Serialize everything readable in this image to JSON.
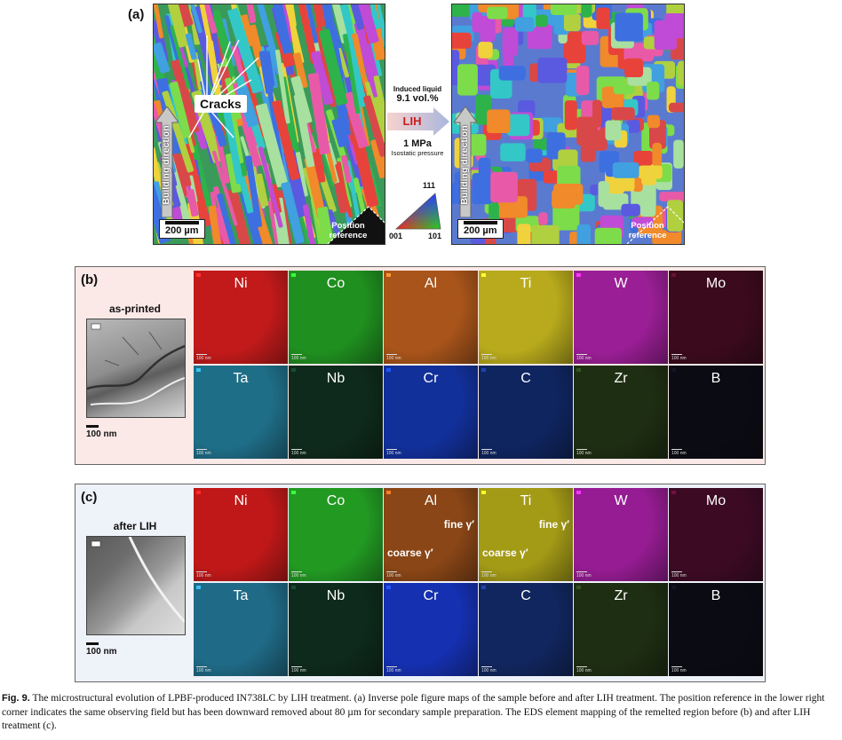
{
  "panel_a": {
    "label": "(a)",
    "cracks_label": "Cracks",
    "building_direction": "Building direction",
    "scale_bar": "200 µm",
    "position_reference": "Position reference",
    "induced_liquid_label": "Induced liquid",
    "induced_liquid_value": "9.1 vol.%",
    "arrow_label": "LIH",
    "pressure_value": "1 MPa",
    "pressure_label": "Isostatic pressure",
    "legend_111": "111",
    "legend_001": "001",
    "legend_101": "101"
  },
  "panel_b": {
    "label": "(b)",
    "tem_title": "as-printed",
    "tem_scale": "100 nm",
    "tile_scale": "100 nm",
    "elements": [
      "Ni",
      "Co",
      "Al",
      "Ti",
      "W",
      "Mo",
      "Ta",
      "Nb",
      "Cr",
      "C",
      "Zr",
      "B"
    ],
    "colors": [
      "#c21a1a",
      "#1f8f1f",
      "#a8541a",
      "#b8aa1c",
      "#9a1e95",
      "#3b0a1c",
      "#1f6e88",
      "#0e2a1c",
      "#12309a",
      "#0f2560",
      "#1e2e12",
      "#0b0b14"
    ]
  },
  "panel_c": {
    "label": "(c)",
    "tem_title": "after LIH",
    "tem_scale": "100 nm",
    "tile_scale": "100 nm",
    "elements": [
      "Ni",
      "Co",
      "Al",
      "Ti",
      "W",
      "Mo",
      "Ta",
      "Nb",
      "Cr",
      "C",
      "Zr",
      "B"
    ],
    "colors": [
      "#c01818",
      "#229a22",
      "#8a4616",
      "#a39a16",
      "#951c92",
      "#3d0a24",
      "#1f6a86",
      "#0d2a1c",
      "#1530b0",
      "#11265e",
      "#1e2e12",
      "#0b0b14"
    ],
    "fine_label": "fine γ′",
    "coarse_label": "coarse γ′"
  },
  "caption": {
    "fig": "Fig. 9.",
    "text": " The microstructural evolution of LPBF-produced IN738LC by LIH treatment. (a) Inverse pole figure maps of the sample before and after LIH treatment. The position reference in the lower right corner indicates the same observing field but has been downward removed about 80 µm for secondary sample preparation. The EDS element mapping of the remelted region before (b) and after LIH treatment (c)."
  }
}
